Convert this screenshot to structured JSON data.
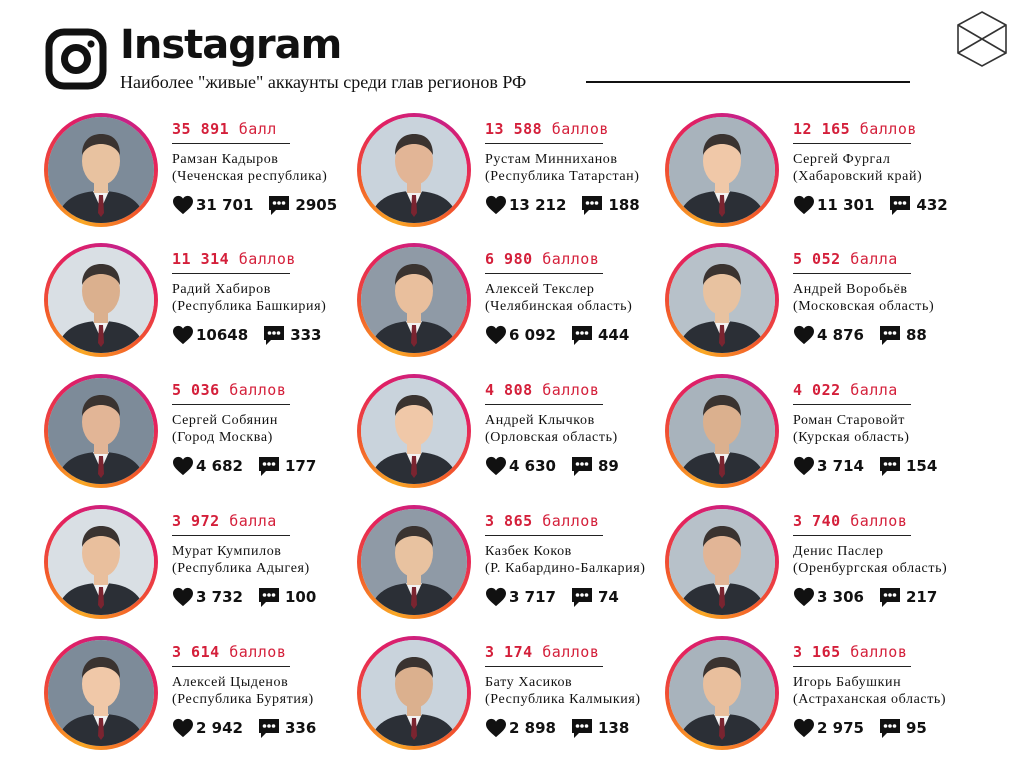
{
  "header": {
    "title": "Instagram",
    "subtitle": "Наиболее \"живые\" аккаунты среди глав регионов РФ",
    "logo_icon": "instagram-icon",
    "corner_icon": "cube-icon"
  },
  "colors": {
    "score": "#d41f3a",
    "ring_start": "#f9a825",
    "ring_end": "#c5218a",
    "text": "#111111"
  },
  "icons": {
    "likes": "heart-icon",
    "comments": "comment-bubble-icon"
  },
  "leaders": [
    {
      "score": "35 891",
      "unit": "балл",
      "name": "Рамзан Кадыров",
      "region": "(Чеченская республика)",
      "likes": "31 701",
      "comments": "2905"
    },
    {
      "score": "13 588",
      "unit": "баллов",
      "name": "Рустам Минниханов",
      "region": "(Республика Татарстан)",
      "likes": "13 212",
      "comments": "188"
    },
    {
      "score": "12 165",
      "unit": "баллов",
      "name": "Сергей Фургал",
      "region": "(Хабаровский край)",
      "likes": "11 301",
      "comments": "432"
    },
    {
      "score": "11 314",
      "unit": "баллов",
      "name": "Радий Хабиров",
      "region": "(Республика Башкирия)",
      "likes": "10648",
      "comments": "333"
    },
    {
      "score": "6 980",
      "unit": "баллов",
      "name": "Алексей Текслер",
      "region": "(Челябинская область)",
      "likes": "6 092",
      "comments": "444"
    },
    {
      "score": "5 052",
      "unit": "балла",
      "name": "Андрей Воробьёв",
      "region": "(Московская область)",
      "likes": "4 876",
      "comments": "88"
    },
    {
      "score": "5 036",
      "unit": "баллов",
      "name": "Сергей Собянин",
      "region": "(Город Москва)",
      "likes": "4 682",
      "comments": "177"
    },
    {
      "score": "4 808",
      "unit": "баллов",
      "name": "Андрей Клычков",
      "region": "(Орловская область)",
      "likes": "4 630",
      "comments": "89"
    },
    {
      "score": "4 022",
      "unit": "балла",
      "name": "Роман Старовойт",
      "region": "(Курская область)",
      "likes": "3 714",
      "comments": "154"
    },
    {
      "score": "3 972",
      "unit": "балла",
      "name": "Мурат Кумпилов",
      "region": "(Республика Адыгея)",
      "likes": "3 732",
      "comments": "100"
    },
    {
      "score": "3 865",
      "unit": "баллов",
      "name": "Казбек Коков",
      "region": "(Р. Кабардино-Балкария)",
      "likes": "3 717",
      "comments": "74"
    },
    {
      "score": "3 740",
      "unit": "баллов",
      "name": "Денис Паслер",
      "region": "(Оренбургская область)",
      "likes": "3 306",
      "comments": "217"
    },
    {
      "score": "3 614",
      "unit": "баллов",
      "name": "Алексей Цыденов",
      "region": "(Республика Бурятия)",
      "likes": "2 942",
      "comments": "336"
    },
    {
      "score": "3 174",
      "unit": "баллов",
      "name": "Бату Хасиков",
      "region": "(Республика Калмыкия)",
      "likes": "2 898",
      "comments": "138"
    },
    {
      "score": "3 165",
      "unit": "баллов",
      "name": "Игорь Бабушкин",
      "region": "(Астраханская область)",
      "likes": "2 975",
      "comments": "95"
    }
  ]
}
